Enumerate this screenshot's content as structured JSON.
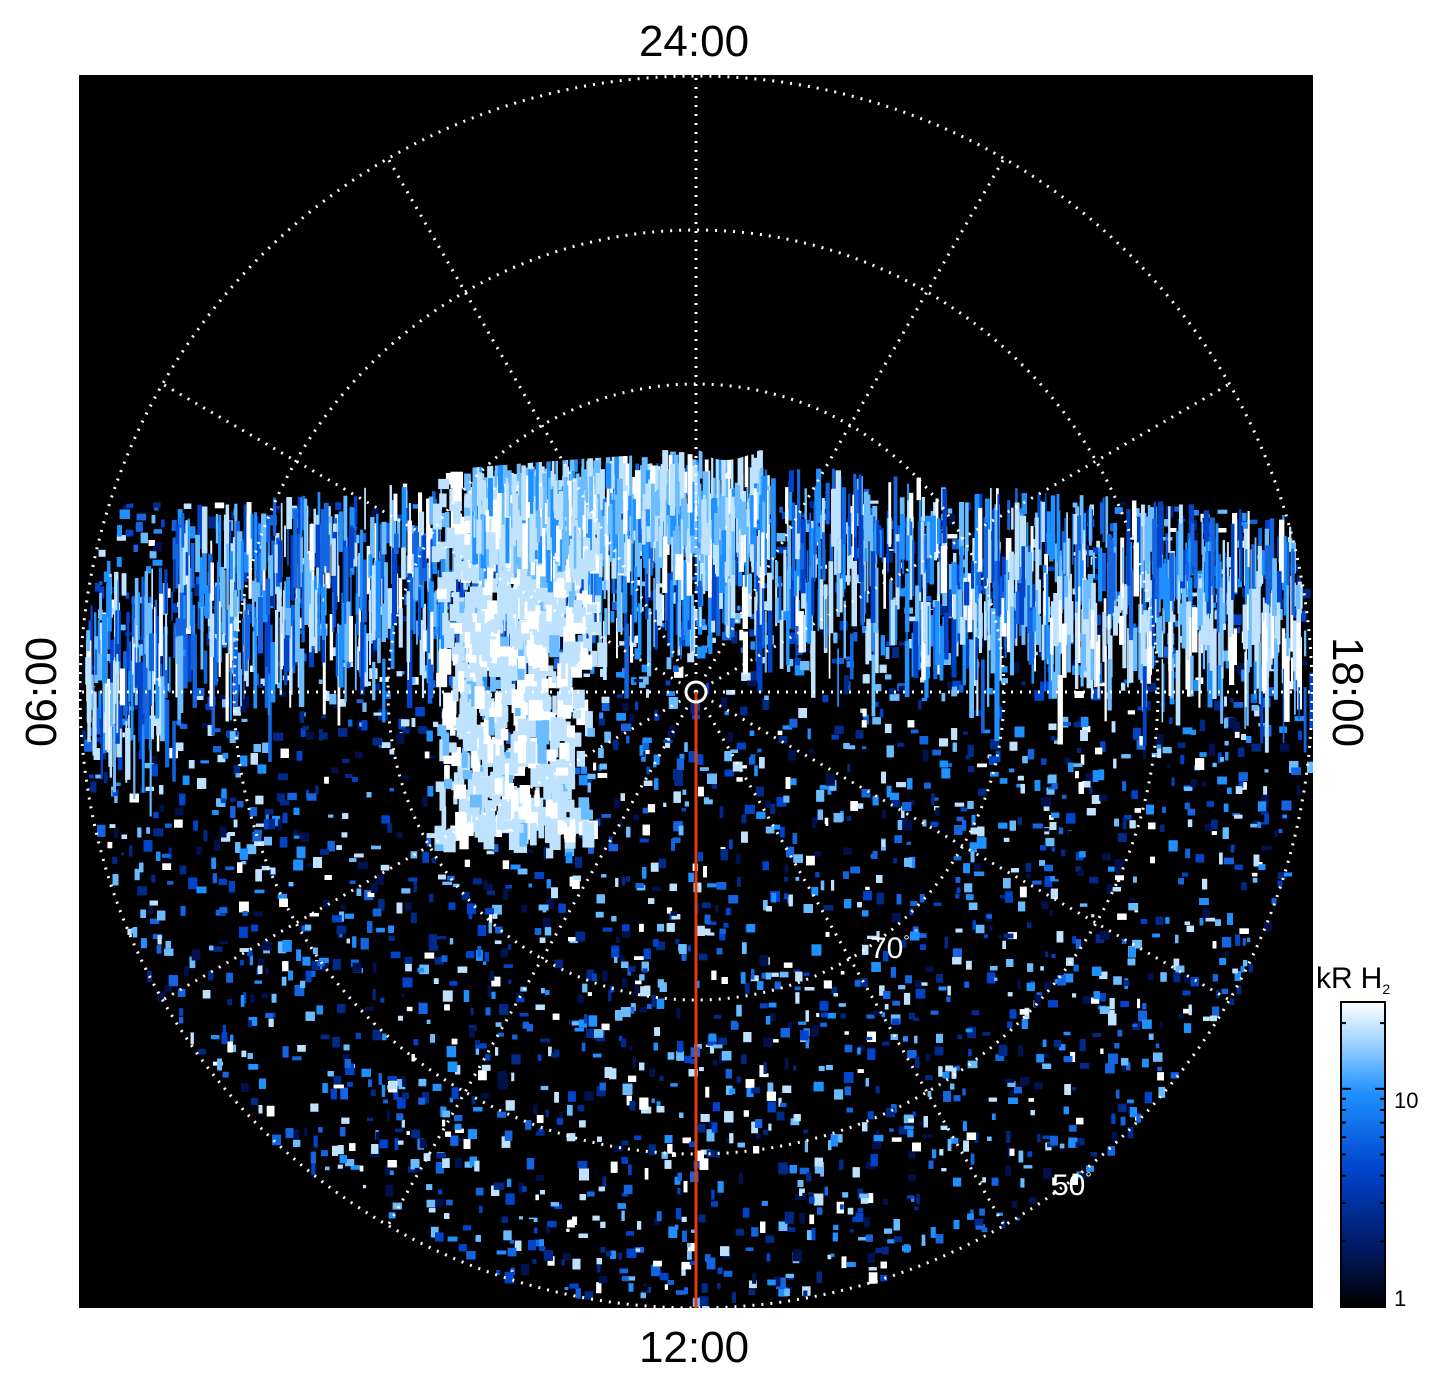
{
  "local_time_labels": {
    "top": "24:00",
    "bottom": "12:00",
    "left": "06:00",
    "right": "18:00"
  },
  "latitude_labels": {
    "inner": "70",
    "outer": "50",
    "degree_symbol": "°"
  },
  "colorbar": {
    "unit": "kR",
    "species": "H",
    "subscript": "2",
    "ticks": [
      {
        "label": "10",
        "value": 10
      },
      {
        "label": "1",
        "value": 1
      }
    ],
    "scale": "log",
    "range": [
      1,
      25
    ],
    "colors": [
      "#000000",
      "#001a66",
      "#0044cc",
      "#1e90ff",
      "#a8d8ff",
      "#ffffff"
    ]
  },
  "meridian_line_color": "#e23b12",
  "grid_color": "#ffffff",
  "background_color": "#000000"
}
